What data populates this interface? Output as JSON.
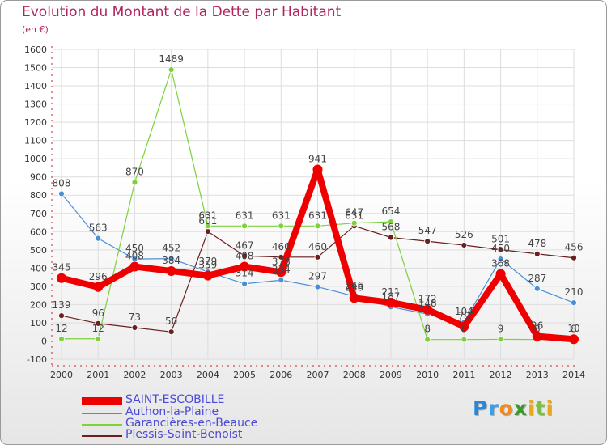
{
  "title": "Evolution du Montant de la Dette par Habitant",
  "unit_label": "(en €)",
  "logo": {
    "letters": [
      "P",
      "r",
      "o",
      "x",
      "i",
      "t",
      "i"
    ],
    "colors": [
      "#2a86d8",
      "#3c9de8",
      "#f08a1a",
      "#3a9a2a",
      "#e8a820",
      "#7bc043",
      "#e8a820"
    ]
  },
  "chart_data": {
    "type": "line",
    "title": "Evolution du Montant de la Dette par Habitant",
    "ylabel": "(en €)",
    "xlabel": "",
    "x": [
      "2000",
      "2001",
      "2002",
      "2003",
      "2004",
      "2005",
      "2006",
      "2007",
      "2008",
      "2009",
      "2010",
      "2011",
      "2012",
      "2013",
      "2014"
    ],
    "ylim": [
      -100,
      1600
    ],
    "yticks": [
      -100,
      0,
      100,
      200,
      300,
      400,
      500,
      600,
      700,
      800,
      900,
      1000,
      1100,
      1200,
      1300,
      1400,
      1500,
      1600
    ],
    "grid": true,
    "legend_position": "bottom-left",
    "series": [
      {
        "name": "SAINT-ESCOBILLE",
        "color": "#ee0000",
        "values": [
          345,
          296,
          408,
          384,
          359,
          408,
          378,
          941,
          236,
          211,
          172,
          79,
          368,
          26,
          10
        ]
      },
      {
        "name": "Authon-la-Plaine",
        "color": "#4a8fd6",
        "values": [
          808,
          563,
          450,
          452,
          379,
          314,
          334,
          297,
          246,
          187,
          148,
          104,
          450,
          287,
          210
        ]
      },
      {
        "name": "Garancières-en-Beauce",
        "color": "#7cd13c",
        "values": [
          12,
          12,
          870,
          1489,
          631,
          631,
          631,
          631,
          647,
          654,
          8,
          8,
          9,
          8,
          8
        ]
      },
      {
        "name": "Plessis-Saint-Benoist",
        "color": "#6b1f1f",
        "values": [
          139,
          96,
          73,
          50,
          601,
          467,
          460,
          460,
          631,
          568,
          547,
          526,
          501,
          478,
          456
        ]
      }
    ]
  }
}
